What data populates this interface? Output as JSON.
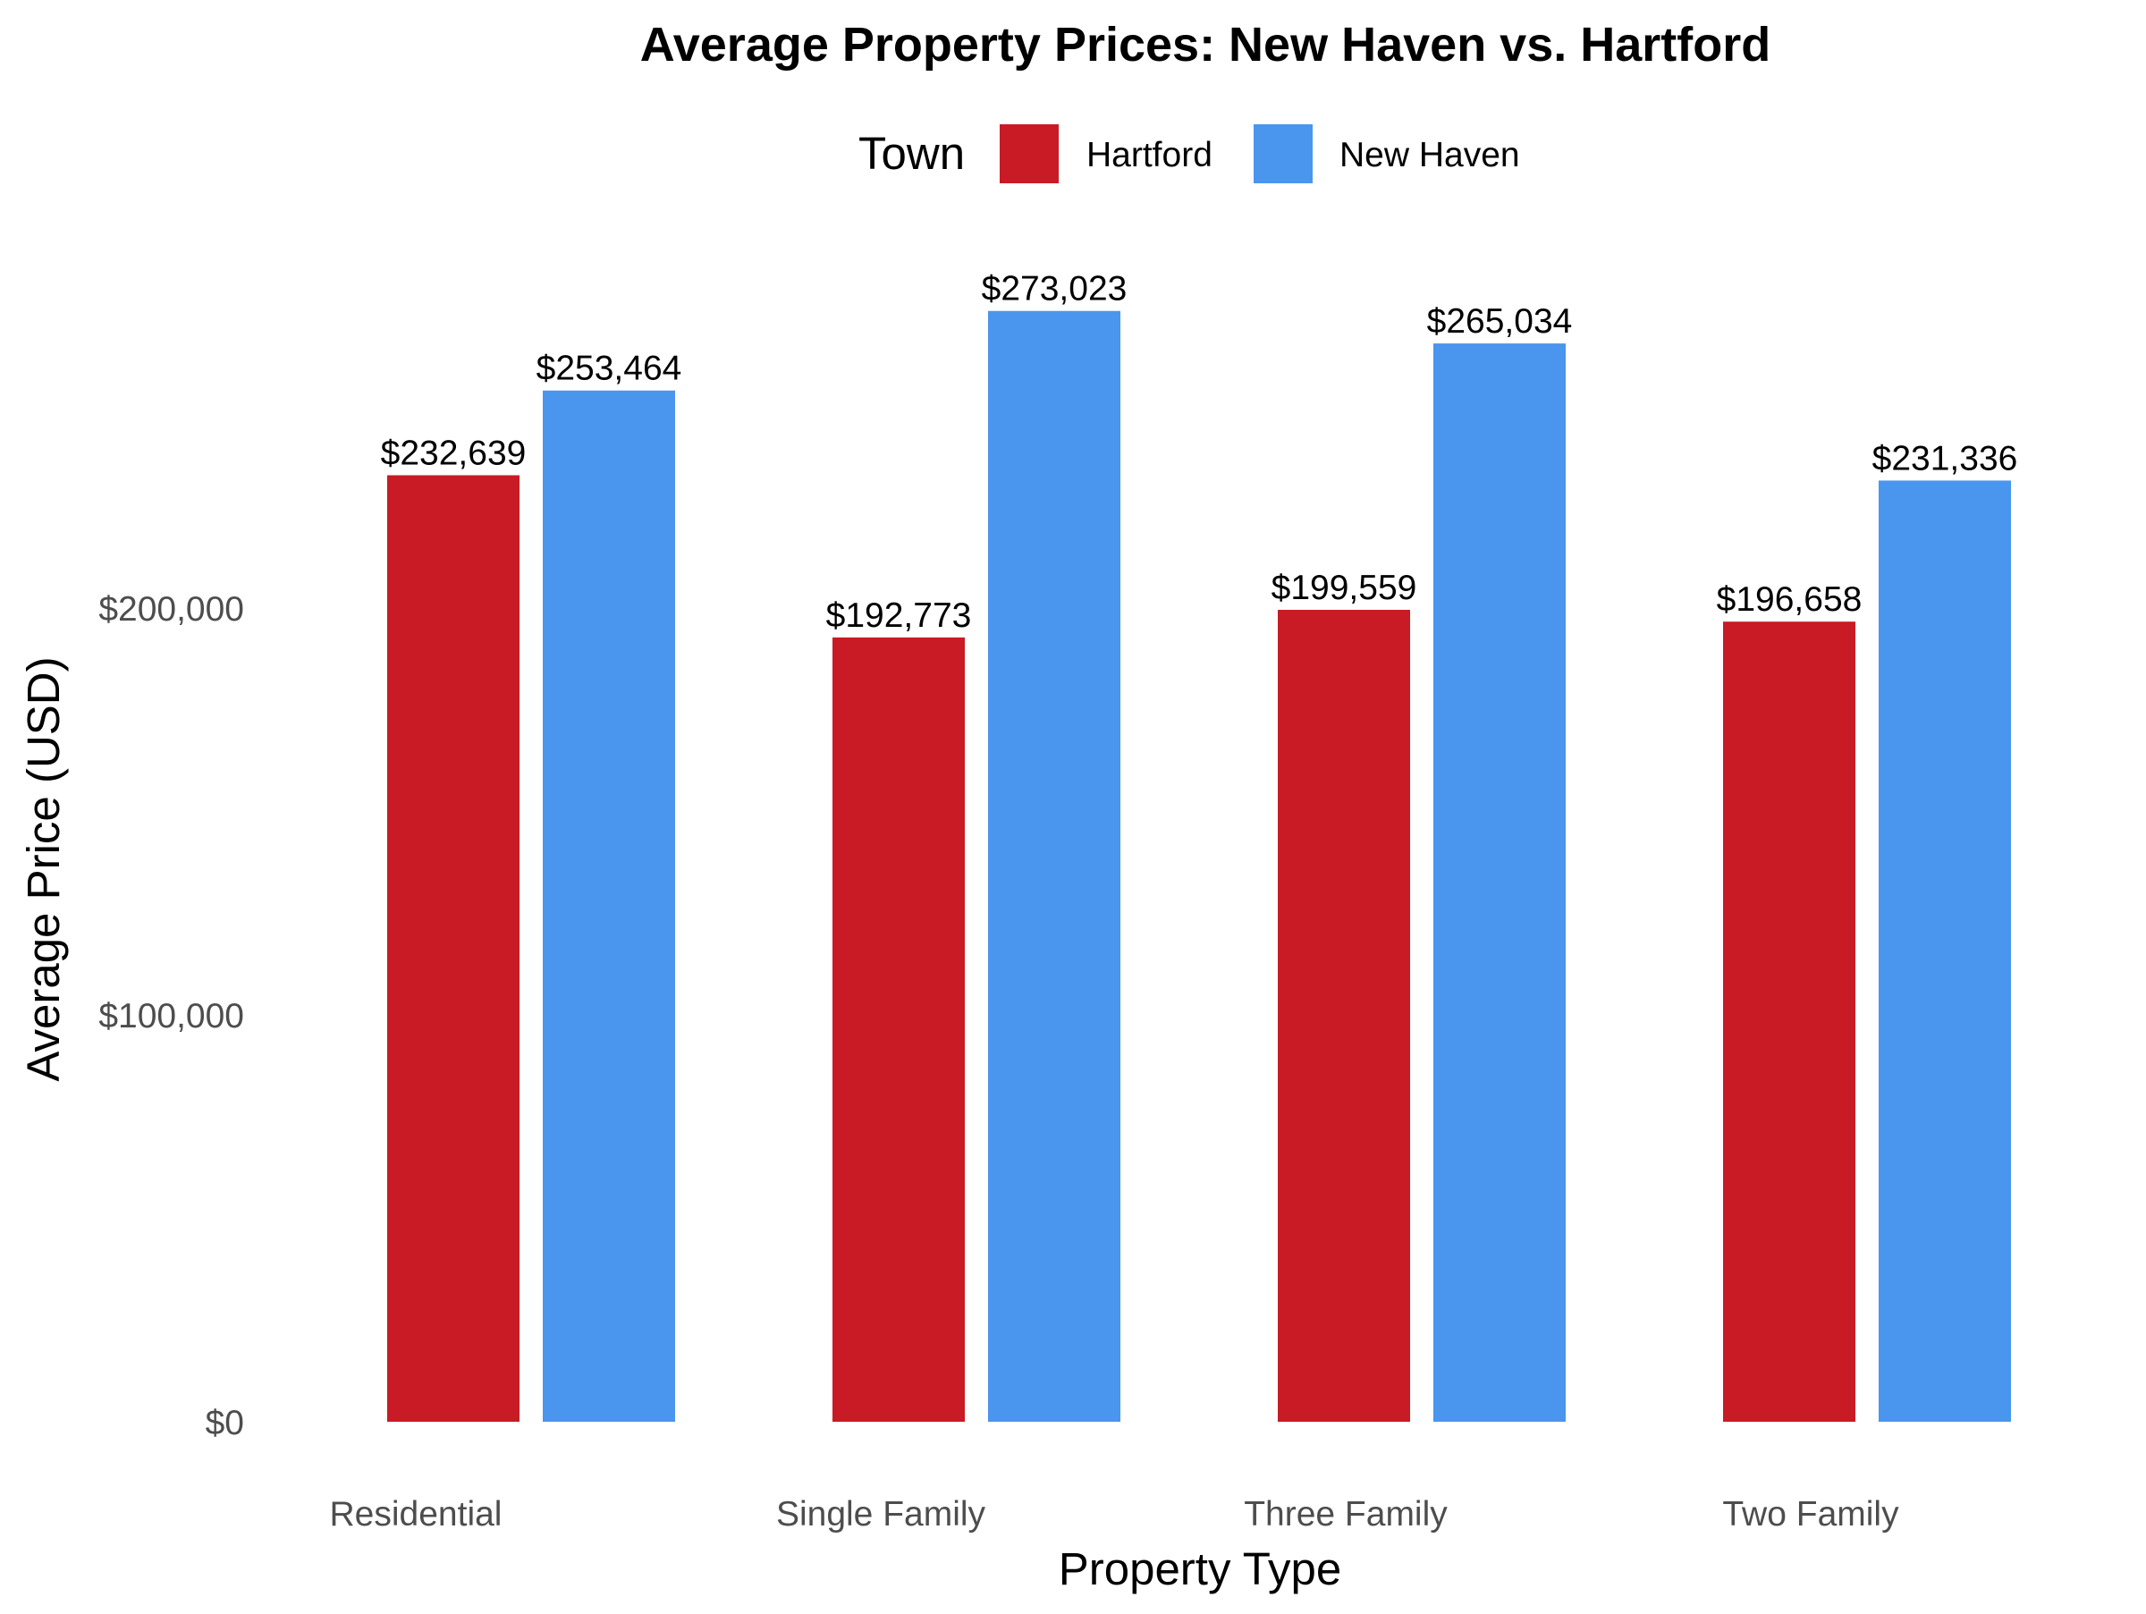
{
  "chart_data": {
    "type": "bar",
    "title": "Average Property Prices: New Haven vs. Hartford",
    "xlabel": "Property Type",
    "ylabel": "Average Price (USD)",
    "categories": [
      "Residential",
      "Single Family",
      "Three Family",
      "Two Family"
    ],
    "legend": {
      "title": "Town",
      "placement": "top"
    },
    "series": [
      {
        "name": "Hartford",
        "color": "#C81B25",
        "values": [
          232639,
          192773,
          199559,
          196658
        ],
        "labels": [
          "$232,639",
          "$192,773",
          "$199,559",
          "$196,658"
        ]
      },
      {
        "name": "New Haven",
        "color": "#4A95EE",
        "values": [
          253464,
          273023,
          265034,
          231336
        ],
        "labels": [
          "$253,464",
          "$273,023",
          "$265,034",
          "$231,336"
        ]
      }
    ],
    "yticks": [
      0,
      100000,
      200000
    ],
    "ytick_labels": [
      "$0",
      "$100,000",
      "$200,000"
    ],
    "ylim": [
      0,
      284000
    ],
    "grid": false
  }
}
